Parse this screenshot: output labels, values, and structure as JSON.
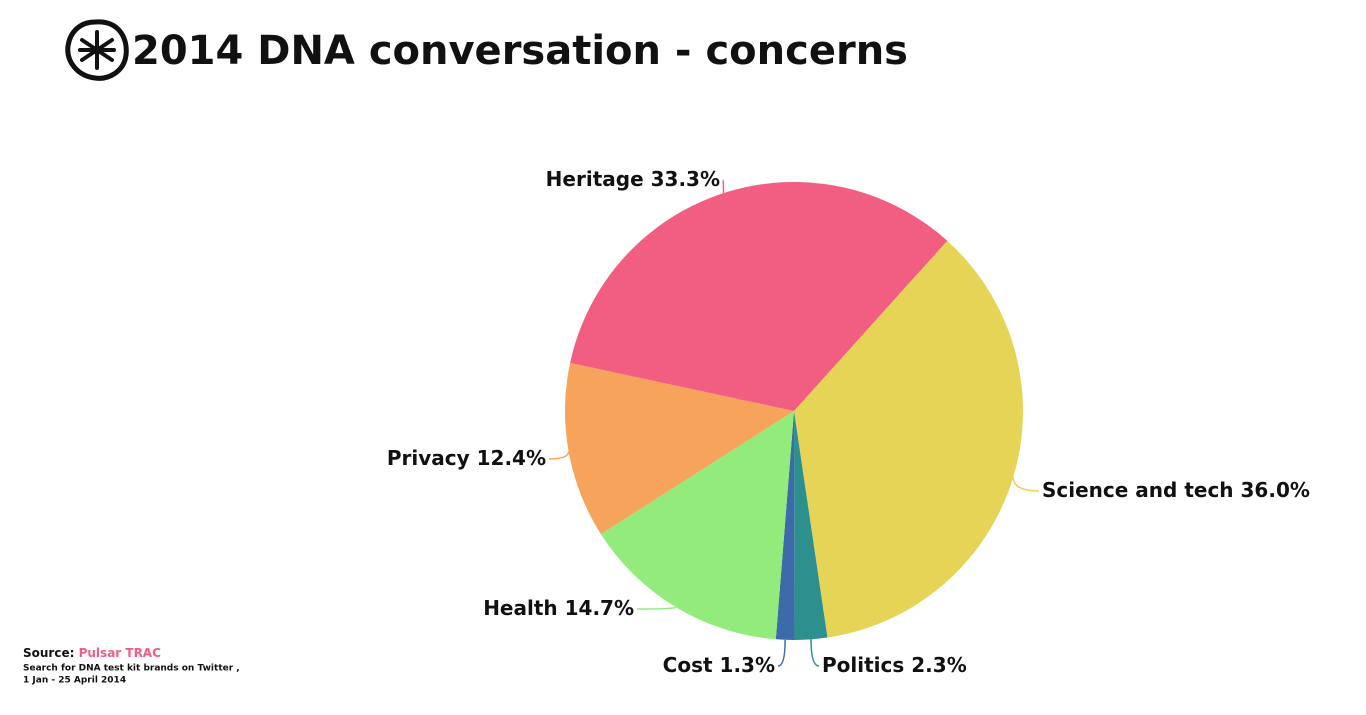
{
  "chart_data": {
    "type": "pie",
    "title": "2014 DNA conversation - concerns",
    "categories": [
      "Science and tech",
      "Politics",
      "Cost",
      "Health",
      "Privacy",
      "Heritage"
    ],
    "values": [
      36.0,
      2.3,
      1.3,
      14.7,
      12.4,
      33.3
    ],
    "value_labels": [
      "36.0%",
      "2.3%",
      "1.3%",
      "14.7%",
      "12.4%",
      "33.3%"
    ],
    "colors": [
      "#e5d456",
      "#2e8f8f",
      "#3d6aa8",
      "#92eb7b",
      "#f6a45c",
      "#f25d82"
    ],
    "start_angle": 42
  },
  "source": {
    "label": "Source:",
    "name": "Pulsar TRAC",
    "lines": [
      "Search for DNA test kit brands on Twitter ,",
      "1 Jan - 25 April 2014"
    ]
  }
}
